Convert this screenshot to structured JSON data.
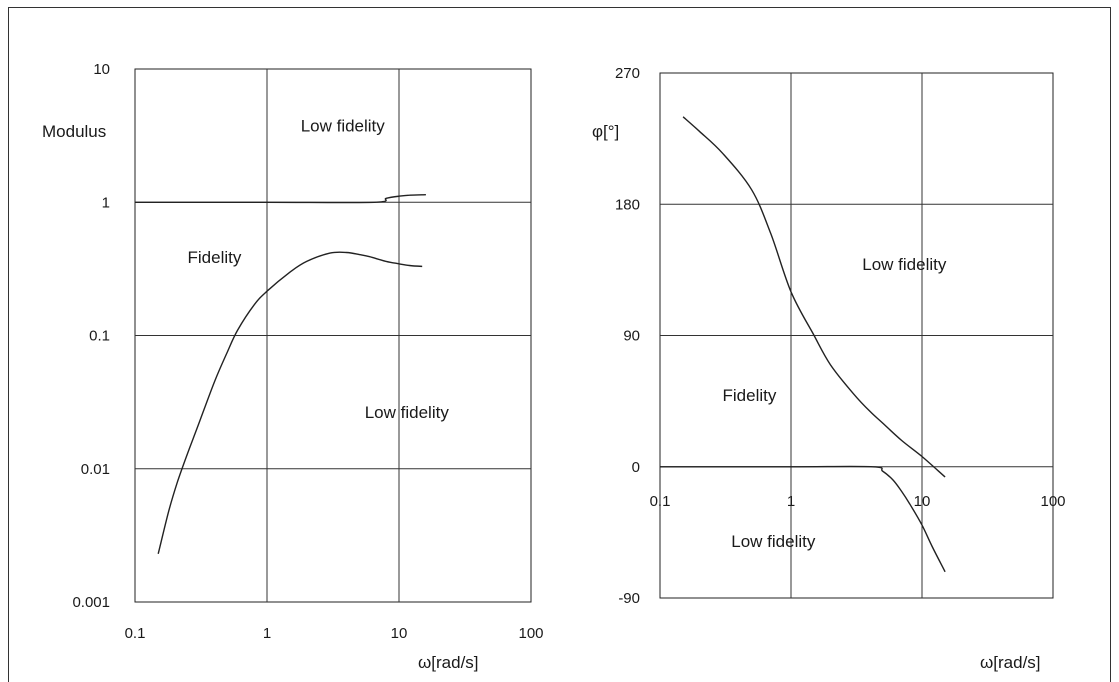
{
  "chart_data": [
    {
      "type": "line",
      "title": "",
      "xlabel": "ω[rad/s]",
      "ylabel": "Modulus",
      "x_scale": "log",
      "y_scale": "log",
      "xlim": [
        0.1,
        100
      ],
      "ylim": [
        0.001,
        10
      ],
      "x_ticks": [
        "0.1",
        "1",
        "10",
        "100"
      ],
      "y_ticks": [
        "10",
        "1",
        "0.1",
        "0.01",
        "0.001"
      ],
      "grid": true,
      "region_labels": [
        {
          "text": "Low fidelity",
          "x": 1.8,
          "y": 3.4
        },
        {
          "text": "Fidelity",
          "x": 0.25,
          "y": 0.35
        },
        {
          "text": "Low fidelity",
          "x": 5.5,
          "y": 0.024
        }
      ],
      "series": [
        {
          "x": [
            0.1,
            1,
            6.5,
            8,
            10,
            12,
            16
          ],
          "y": [
            1,
            1,
            1,
            1.07,
            1.11,
            1.13,
            1.14
          ]
        },
        {
          "x": [
            0.15,
            0.18,
            0.21,
            0.25,
            0.3,
            0.4,
            0.5,
            0.6,
            0.8,
            1,
            1.5,
            2,
            3,
            4,
            5,
            6,
            8,
            10,
            12,
            15
          ],
          "y": [
            0.0023,
            0.0048,
            0.008,
            0.013,
            0.021,
            0.045,
            0.075,
            0.11,
            0.17,
            0.215,
            0.3,
            0.36,
            0.415,
            0.42,
            0.405,
            0.39,
            0.36,
            0.345,
            0.335,
            0.33
          ]
        }
      ]
    },
    {
      "type": "line",
      "title": "",
      "xlabel": "ω[rad/s]",
      "ylabel": "φ[°]",
      "x_scale": "log",
      "y_scale": "linear",
      "xlim": [
        0.1,
        100
      ],
      "ylim": [
        -90,
        270
      ],
      "x_ticks": [
        "0.1",
        "1",
        "10",
        "100"
      ],
      "y_ticks": [
        "270",
        "180",
        "90",
        "0",
        "-90"
      ],
      "grid": true,
      "region_labels": [
        {
          "text": "Low fidelity",
          "x": 3.5,
          "y": 135
        },
        {
          "text": "Fidelity",
          "x": 0.3,
          "y": 45
        },
        {
          "text": "Low fidelity",
          "x": 0.35,
          "y": -55
        }
      ],
      "series": [
        {
          "x": [
            0.15,
            0.2,
            0.3,
            0.5,
            0.7,
            1,
            1.5,
            2,
            3,
            4,
            5,
            7,
            10,
            15
          ],
          "y": [
            240,
            230,
            215,
            190,
            160,
            120,
            90,
            70,
            50,
            38,
            30,
            18,
            7,
            -7
          ]
        },
        {
          "x": [
            0.1,
            1,
            4.2,
            5,
            6,
            7,
            8,
            10,
            12,
            15
          ],
          "y": [
            0,
            0,
            0,
            -3,
            -9,
            -17,
            -25,
            -40,
            -55,
            -72
          ]
        }
      ]
    }
  ]
}
